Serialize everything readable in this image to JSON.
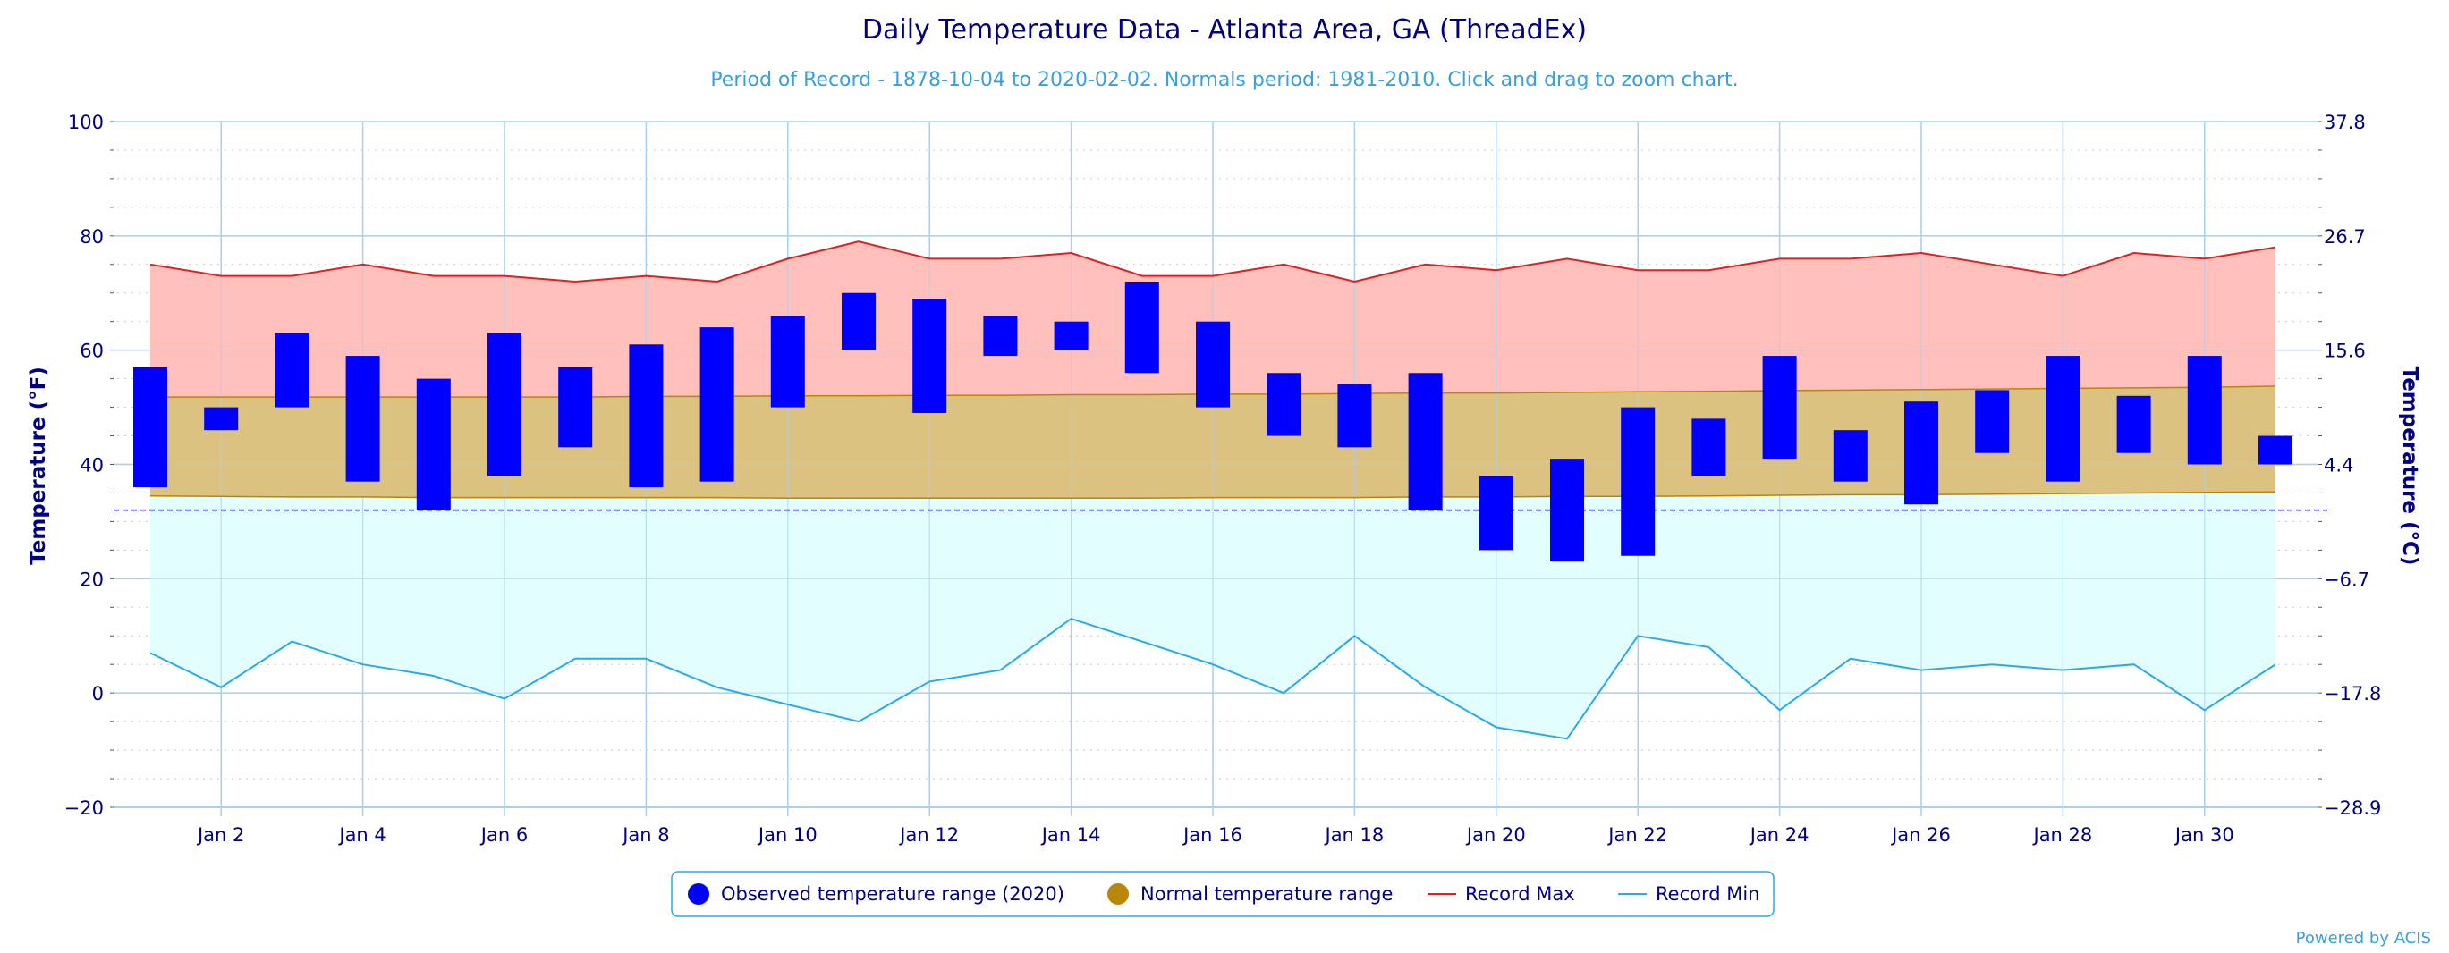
{
  "chart_data": {
    "type": "floating-bar",
    "title": "Daily Temperature Data - Atlanta Area, GA (ThreadEx)",
    "subtitle": "Period of Record - 1878-10-04 to 2020-02-02. Normals period: 1981-2010. Click and drag to zoom chart.",
    "ylabel_left": "Temperature (°F)",
    "ylabel_right": "Temperature (°C)",
    "ylim": [
      -20,
      100
    ],
    "y_ticks": [
      -20,
      0,
      20,
      40,
      60,
      80,
      100
    ],
    "y_ticks_right": [
      "-28.9",
      "-17.8",
      "-6.7",
      "4.4",
      "15.6",
      "26.7",
      "37.8"
    ],
    "freezing_line": 32,
    "x_tick_labels": [
      "Jan 2",
      "Jan 4",
      "Jan 6",
      "Jan 8",
      "Jan 10",
      "Jan 12",
      "Jan 14",
      "Jan 16",
      "Jan 18",
      "Jan 20",
      "Jan 22",
      "Jan 24",
      "Jan 26",
      "Jan 28",
      "Jan 30"
    ],
    "x_tick_days": [
      2,
      4,
      6,
      8,
      10,
      12,
      14,
      16,
      18,
      20,
      22,
      24,
      26,
      28,
      30
    ],
    "days": [
      1,
      2,
      3,
      4,
      5,
      6,
      7,
      8,
      9,
      10,
      11,
      12,
      13,
      14,
      15,
      16,
      17,
      18,
      19,
      20,
      21,
      22,
      23,
      24,
      25,
      26,
      27,
      28,
      29,
      30,
      31
    ],
    "observed_max": [
      57,
      50,
      63,
      59,
      55,
      63,
      57,
      61,
      64,
      66,
      70,
      69,
      66,
      65,
      72,
      65,
      56,
      54,
      56,
      38,
      41,
      50,
      48,
      59,
      46,
      51,
      53,
      59,
      52,
      59,
      45
    ],
    "observed_min": [
      36,
      46,
      50,
      37,
      32,
      38,
      43,
      36,
      37,
      50,
      60,
      49,
      59,
      60,
      56,
      50,
      45,
      43,
      32,
      25,
      23,
      24,
      38,
      41,
      37,
      33,
      42,
      37,
      42,
      40,
      40
    ],
    "normal_max": [
      51.8,
      51.8,
      51.8,
      51.8,
      51.8,
      51.8,
      51.8,
      51.9,
      51.9,
      52.0,
      52.0,
      52.1,
      52.1,
      52.2,
      52.2,
      52.3,
      52.3,
      52.4,
      52.5,
      52.5,
      52.6,
      52.7,
      52.8,
      52.9,
      53.0,
      53.1,
      53.2,
      53.3,
      53.4,
      53.5,
      53.7
    ],
    "normal_min": [
      34.5,
      34.4,
      34.3,
      34.3,
      34.2,
      34.2,
      34.2,
      34.2,
      34.2,
      34.1,
      34.1,
      34.1,
      34.1,
      34.1,
      34.1,
      34.2,
      34.2,
      34.2,
      34.3,
      34.3,
      34.4,
      34.4,
      34.5,
      34.6,
      34.7,
      34.7,
      34.8,
      34.9,
      35.0,
      35.1,
      35.2
    ],
    "record_max": [
      75,
      73,
      73,
      75,
      73,
      73,
      72,
      73,
      72,
      76,
      79,
      76,
      76,
      77,
      73,
      73,
      75,
      72,
      75,
      74,
      76,
      74,
      74,
      76,
      76,
      77,
      75,
      73,
      77,
      76,
      78
    ],
    "record_min": [
      7,
      1,
      9,
      5,
      3,
      -1,
      6,
      6,
      1,
      -2,
      -5,
      2,
      4,
      13,
      9,
      5,
      0,
      10,
      1,
      -6,
      -8,
      10,
      8,
      -3,
      6,
      4,
      5,
      4,
      5,
      -3,
      5
    ],
    "legend": [
      {
        "label": "Observed temperature range (2020)",
        "color": "#0000ff"
      },
      {
        "label": "Normal temperature range",
        "color": "#b8860b"
      },
      {
        "label": "Record Max",
        "color": "#e02020"
      },
      {
        "label": "Record Min",
        "color": "#2aa8e8"
      }
    ],
    "colors": {
      "observed": "#0000ff",
      "normal_fill": "#dcc281",
      "normal_line": "#b8860b",
      "record_max_fill": "#ffbfbb",
      "record_max_line": "#e02020",
      "record_min_fill": "#e2fdfd",
      "record_min_line": "#2aa8e8",
      "grid": "#a8d0f0",
      "freezing": "#0000cc"
    },
    "credit": "Powered by ACIS"
  }
}
